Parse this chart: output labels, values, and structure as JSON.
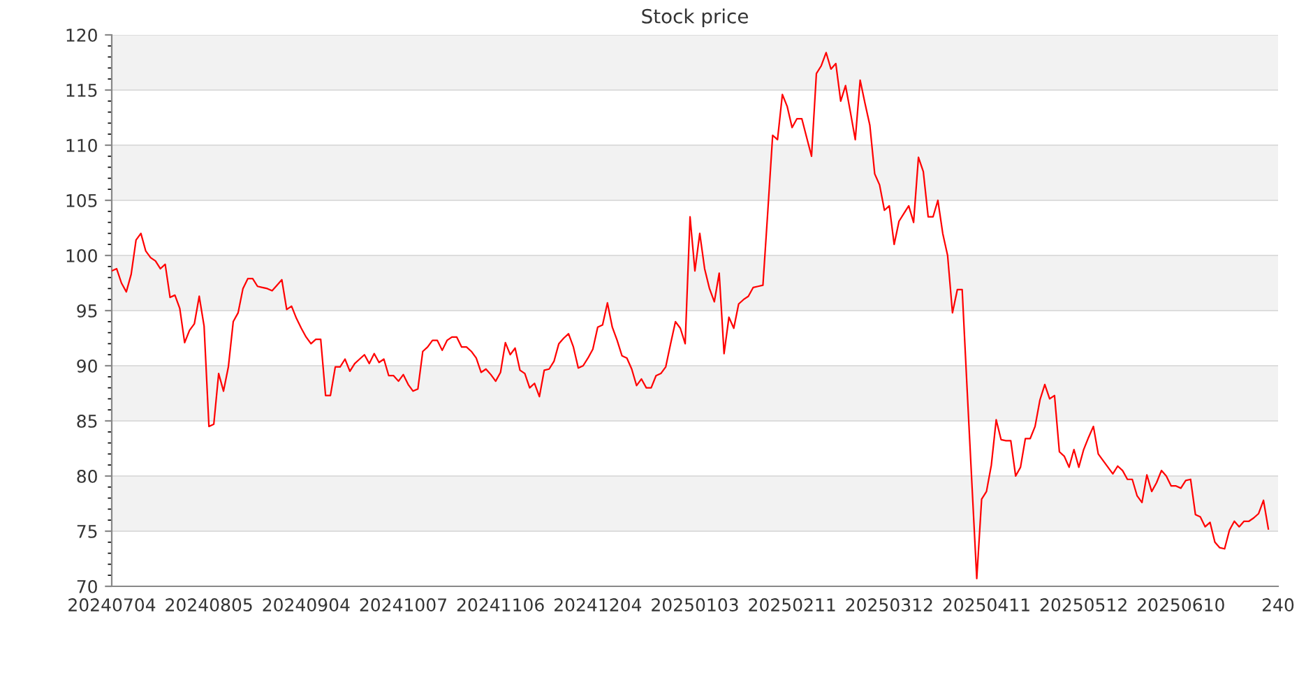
{
  "chart_data": {
    "type": "line",
    "title": "Stock price",
    "categories": [
      "20240704",
      null,
      null,
      null,
      null,
      null,
      null,
      null,
      null,
      null,
      null,
      null,
      null,
      null,
      null,
      null,
      null,
      null,
      null,
      null,
      "20240805",
      null,
      null,
      null,
      null,
      null,
      null,
      null,
      null,
      null,
      null,
      null,
      null,
      null,
      null,
      null,
      null,
      null,
      null,
      null,
      "20240904",
      null,
      null,
      null,
      null,
      null,
      null,
      null,
      null,
      null,
      null,
      null,
      null,
      null,
      null,
      null,
      null,
      null,
      null,
      null,
      "20241007",
      null,
      null,
      null,
      null,
      null,
      null,
      null,
      null,
      null,
      null,
      null,
      null,
      null,
      null,
      null,
      null,
      null,
      null,
      null,
      "20241106",
      null,
      null,
      null,
      null,
      null,
      null,
      null,
      null,
      null,
      null,
      null,
      null,
      null,
      null,
      null,
      null,
      null,
      null,
      null,
      "20241204",
      null,
      null,
      null,
      null,
      null,
      null,
      null,
      null,
      null,
      null,
      null,
      null,
      null,
      null,
      null,
      null,
      null,
      null,
      null,
      "20250103",
      null,
      null,
      null,
      null,
      null,
      null,
      null,
      null,
      null,
      null,
      null,
      null,
      null,
      null,
      null,
      null,
      null,
      null,
      null,
      "20250211",
      null,
      null,
      null,
      null,
      null,
      null,
      null,
      null,
      null,
      null,
      null,
      null,
      null,
      null,
      null,
      null,
      null,
      null,
      null,
      "20250312",
      null,
      null,
      null,
      null,
      null,
      null,
      null,
      null,
      null,
      null,
      null,
      null,
      null,
      null,
      null,
      null,
      null,
      null,
      null,
      "20250411",
      null,
      null,
      null,
      null,
      null,
      null,
      null,
      null,
      null,
      null,
      null,
      null,
      null,
      null,
      null,
      null,
      null,
      null,
      null,
      "20250512",
      null,
      null,
      null,
      null,
      null,
      null,
      null,
      null,
      null,
      null,
      null,
      null,
      null,
      null,
      null,
      null,
      null,
      null,
      null,
      "20250610",
      null,
      null,
      null,
      null,
      null,
      null,
      null,
      null,
      null,
      null,
      null,
      null,
      null,
      null,
      null,
      null,
      null,
      null,
      null,
      "240"
    ],
    "ylim": [
      70,
      120
    ],
    "yticks": [
      70,
      75,
      80,
      85,
      90,
      95,
      100,
      105,
      110,
      115,
      120
    ],
    "grid": "y",
    "marker": "none",
    "line_style": "solid",
    "series": [
      {
        "color": "#ff0000",
        "values": [
          98.6,
          98.8,
          97.5,
          96.7,
          98.3,
          101.4,
          102.0,
          100.4,
          99.8,
          99.5,
          98.8,
          99.2,
          96.2,
          96.4,
          95.2,
          92.1,
          93.2,
          93.8,
          96.3,
          93.6,
          84.5,
          84.7,
          89.3,
          87.7,
          89.9,
          94.0,
          94.8,
          97.0,
          97.9,
          97.9,
          97.2,
          97.1,
          97.0,
          96.8,
          97.3,
          97.8,
          95.1,
          95.4,
          94.3,
          93.4,
          92.6,
          92.0,
          92.4,
          92.4,
          87.3,
          87.3,
          89.9,
          89.9,
          90.6,
          89.5,
          90.2,
          90.6,
          91.0,
          90.2,
          91.1,
          90.3,
          90.6,
          89.1,
          89.1,
          88.6,
          89.2,
          88.3,
          87.7,
          87.9,
          91.3,
          91.7,
          92.3,
          92.3,
          91.4,
          92.3,
          92.6,
          92.6,
          91.7,
          91.7,
          91.3,
          90.7,
          89.4,
          89.7,
          89.2,
          88.6,
          89.4,
          92.1,
          91.0,
          91.6,
          89.6,
          89.3,
          88.0,
          88.4,
          87.2,
          89.6,
          89.7,
          90.4,
          92.0,
          92.5,
          92.9,
          91.7,
          89.8,
          90.0,
          90.7,
          91.5,
          93.5,
          93.7,
          95.7,
          93.5,
          92.3,
          90.9,
          90.7,
          89.7,
          88.2,
          88.8,
          88.0,
          88.0,
          89.1,
          89.3,
          89.9,
          92.0,
          94.0,
          93.4,
          92.0,
          103.5,
          98.6,
          102.0,
          98.8,
          97.0,
          95.8,
          98.4,
          91.1,
          94.4,
          93.4,
          95.6,
          96.0,
          96.3,
          97.1,
          97.2,
          97.3,
          104.0,
          110.9,
          110.5,
          114.6,
          113.5,
          111.6,
          112.4,
          112.4,
          110.7,
          109.0,
          116.5,
          117.2,
          118.4,
          116.9,
          117.4,
          114.0,
          115.4,
          113.0,
          110.5,
          115.9,
          113.8,
          111.8,
          107.4,
          106.4,
          104.1,
          104.5,
          101.0,
          103.1,
          103.8,
          104.5,
          103.0,
          108.9,
          107.6,
          103.5,
          103.5,
          105.0,
          102.0,
          100.0,
          94.8,
          96.9,
          96.9,
          88.0,
          79.3,
          70.7,
          77.9,
          78.6,
          81.0,
          85.1,
          83.3,
          83.2,
          83.2,
          80.0,
          80.8,
          83.4,
          83.4,
          84.5,
          86.9,
          88.3,
          87.0,
          87.3,
          82.2,
          81.8,
          80.8,
          82.4,
          80.8,
          82.4,
          83.5,
          84.5,
          82.0,
          81.4,
          80.8,
          80.2,
          80.9,
          80.5,
          79.7,
          79.7,
          78.2,
          77.6,
          80.1,
          78.6,
          79.4,
          80.5,
          80.0,
          79.1,
          79.1,
          78.9,
          79.6,
          79.7,
          76.5,
          76.3,
          75.4,
          75.8,
          74.0,
          73.5,
          73.4,
          75.1,
          75.9,
          75.4,
          75.9,
          75.9,
          76.2,
          76.6,
          77.8,
          75.2,
          null,
          null
        ]
      }
    ]
  }
}
